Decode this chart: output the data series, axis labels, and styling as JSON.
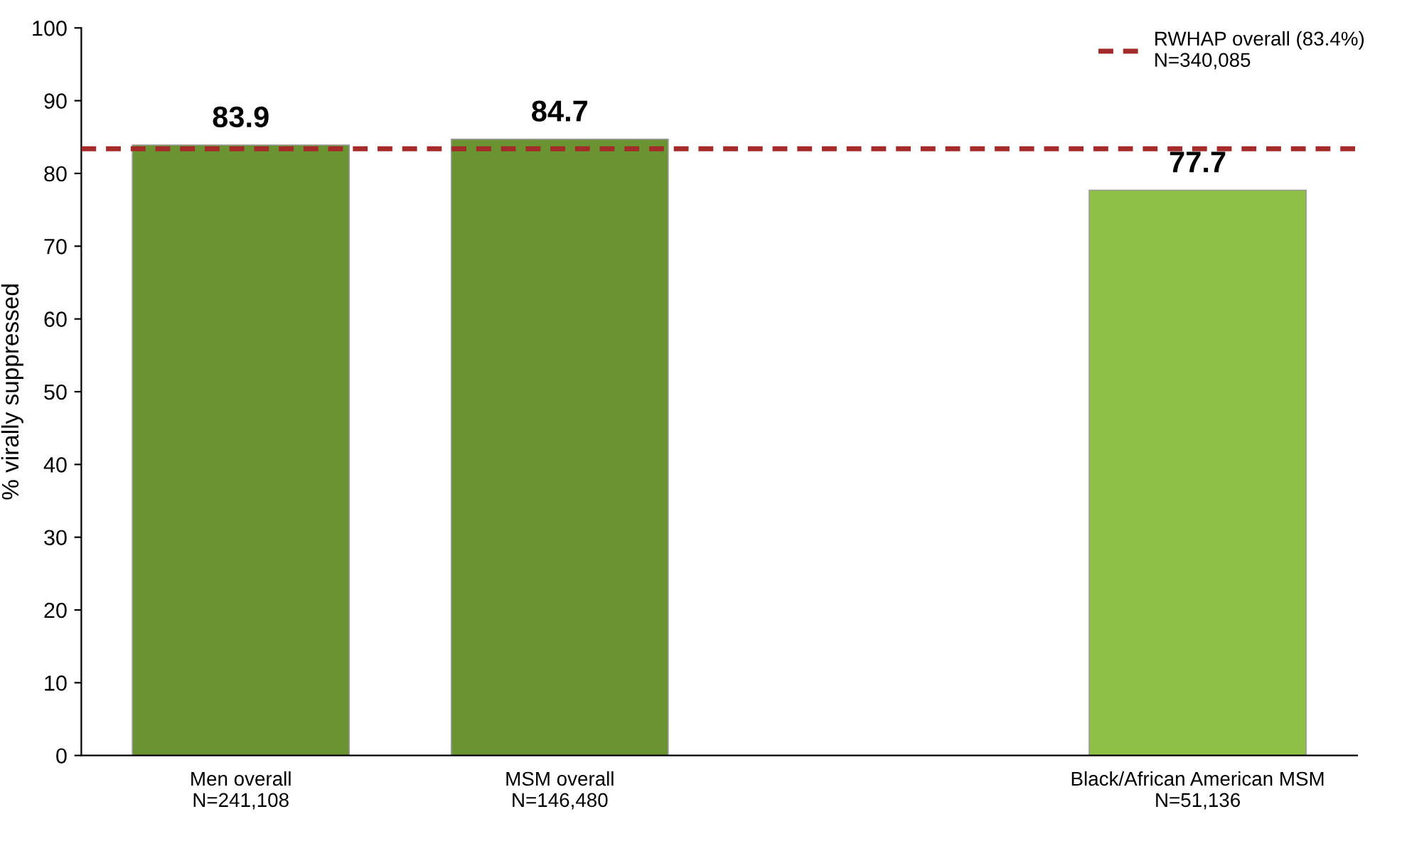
{
  "chart_data": {
    "type": "bar",
    "ylabel": "% virally suppressed",
    "categories": [
      "Men overall\nN=241,108",
      "MSM overall\nN=146,480",
      null,
      "Black/African American MSM\nN=51,136"
    ],
    "values": [
      83.9,
      84.7,
      null,
      77.7
    ],
    "colors": [
      "#6a9331",
      "#6a9331",
      null,
      "#8dc044"
    ],
    "ylim": [
      0,
      100
    ],
    "yticks": [
      0,
      10,
      20,
      30,
      40,
      50,
      60,
      70,
      80,
      90,
      100
    ],
    "data_labels": true,
    "grid": false,
    "legend": "top right",
    "ref_lines": [
      {
        "axis": "y",
        "value": 83.4,
        "label": "RWHAP overall (83.4%)\nN=340,085",
        "color": "#a52a2a",
        "line_style": "dashed"
      }
    ]
  }
}
